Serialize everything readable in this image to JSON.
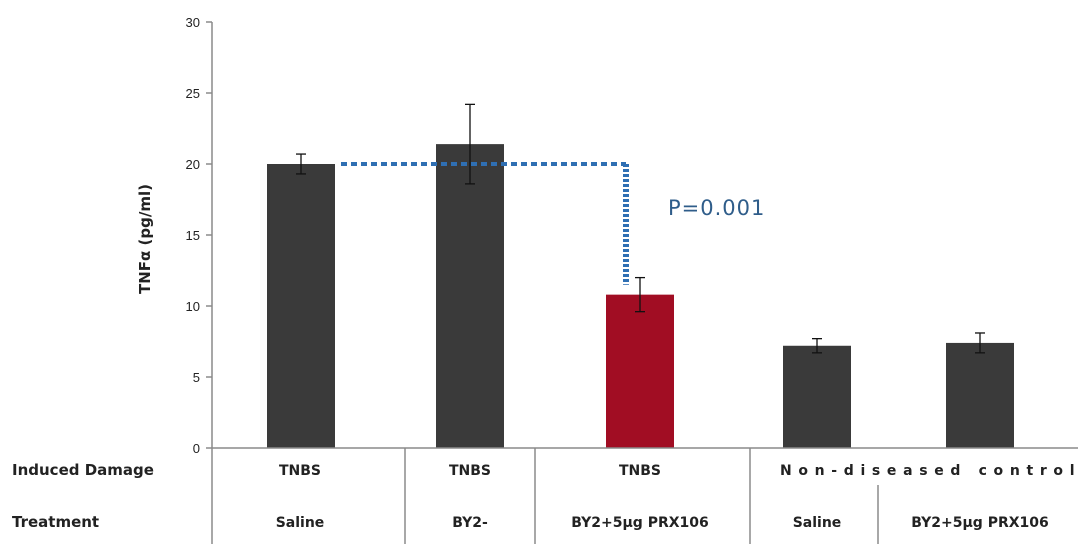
{
  "chart_data": {
    "type": "bar",
    "ylabel": "TNFα (pg/ml)",
    "ylim": [
      0,
      30
    ],
    "yticks": [
      0,
      5,
      10,
      15,
      20,
      25,
      30
    ],
    "grid": false,
    "values": [
      20.0,
      21.4,
      10.8,
      7.2,
      7.4
    ],
    "errors": [
      0.7,
      2.8,
      1.2,
      0.5,
      0.7
    ],
    "bar_colors": [
      "#3a3a3a",
      "#3a3a3a",
      "#a10d23",
      "#3a3a3a",
      "#3a3a3a"
    ],
    "table": {
      "rows": [
        {
          "label": "Induced Damage",
          "cells": [
            "TNBS",
            "TNBS",
            "TNBS",
            "Non-diseased control"
          ]
        },
        {
          "label": "Treatment",
          "cells": [
            "Saline",
            "BY2-",
            "BY2+5μg PRX106",
            "Saline",
            "BY2+5μg PRX106"
          ]
        }
      ]
    },
    "annotation": {
      "text": "P=0.001",
      "from_value": 20.0,
      "to_value": 11.5,
      "color": "#2f6fb3"
    }
  }
}
